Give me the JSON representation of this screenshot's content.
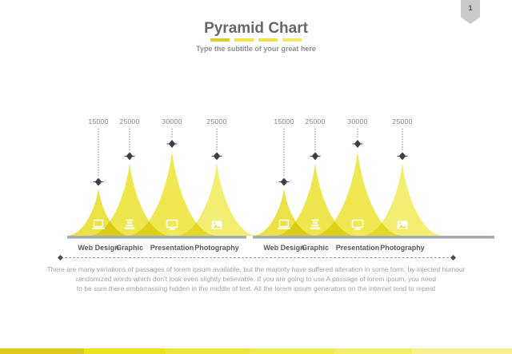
{
  "slide": {
    "page_number": "1",
    "title": "Pyramid Chart",
    "subtitle": "Type the subtitle of your great here",
    "title_dash_colors": [
      "#d9ce30",
      "#f0e746",
      "#ece243",
      "#f2eb66"
    ],
    "body_lines": [
      "There are many variations of passages of lorem ipsum available, but the majority have suffered alteration in some form, by injected humour",
      "randomized words which don't look even slightly believable. If you are going to use A passage of lorem ipsum, you need",
      "to be sure there embarrassing hidden in the middle of text. All the lorem ipsum generators on the internet tend to repeat"
    ]
  },
  "chart_data": {
    "type": "area",
    "variant": "pyramid-peak-chart",
    "title": "Pyramid Chart",
    "legend": "none",
    "grid": "off",
    "groups": [
      {
        "name": "left-group",
        "categories": [
          "Web Design",
          "Graphic",
          "Presentation",
          "Photography"
        ],
        "values": [
          15000,
          25000,
          30000,
          25000
        ],
        "icons": [
          "laptop-icon",
          "layers-icon",
          "monitor-icon",
          "photo-icon"
        ],
        "colors": [
          "#e9df33",
          "#ebe338",
          "#ede63f",
          "#f1ec63"
        ]
      },
      {
        "name": "right-group",
        "categories": [
          "Web Design",
          "Graphic",
          "Presentation",
          "Photography"
        ],
        "values": [
          15000,
          25000,
          30000,
          25000
        ],
        "icons": [
          "laptop-icon",
          "layers-icon",
          "monitor-icon",
          "photo-icon"
        ],
        "colors": [
          "#e9df33",
          "#ebe338",
          "#ede63f",
          "#f1ec63"
        ]
      }
    ],
    "value_max": 30000,
    "marker_shape": "diamond",
    "marker_color": "#3f3f41",
    "dashed_line_color": "#606163",
    "baseline_color": "#a4abb3",
    "value_label_color": "#7f8184",
    "category_label_color": "#58595b",
    "icon_color": "#ffffff"
  },
  "footer": {
    "segment_colors": [
      "#dbca20",
      "#eae31a",
      "#eee63e",
      "#f1ea55",
      "#f4ee70",
      "#f7f28e"
    ],
    "segment_widths": [
      105,
      102,
      105,
      105,
      98,
      125
    ]
  }
}
